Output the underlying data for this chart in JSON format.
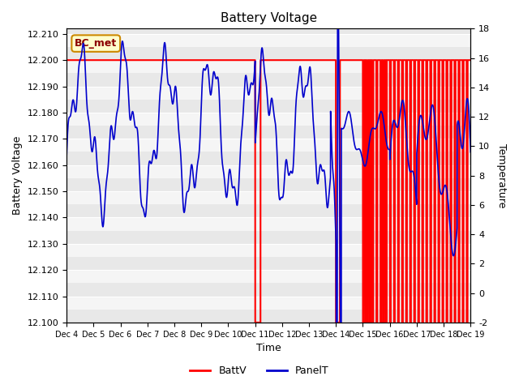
{
  "title": "Battery Voltage",
  "xlabel": "Time",
  "ylabel_left": "Battery Voltage",
  "ylabel_right": "Temperature",
  "ylim_left": [
    12.1,
    12.212
  ],
  "ylim_right": [
    -2,
    18
  ],
  "bg_color": "#f0f0f0",
  "annotation_text": "BC_met",
  "annotation_facecolor": "#ffffcc",
  "annotation_edgecolor": "#cc8800",
  "annotation_textcolor": "#8b0000",
  "batt_color": "#ff0000",
  "panel_color": "#0000cc",
  "x_tick_labels": [
    "Dec 4",
    "Dec 5",
    "Dec 6",
    "Dec 7",
    "Dec 8",
    "Dec 9",
    "Dec 10",
    "Dec 11",
    "Dec 12",
    "Dec 13",
    "Dec 14",
    "Dec 15",
    "Dec 16",
    "Dec 17",
    "Dec 18",
    "Dec 19"
  ],
  "stripe_colors": [
    "#e8e8e8",
    "#f5f5f5"
  ],
  "stripe_step": 0.005
}
